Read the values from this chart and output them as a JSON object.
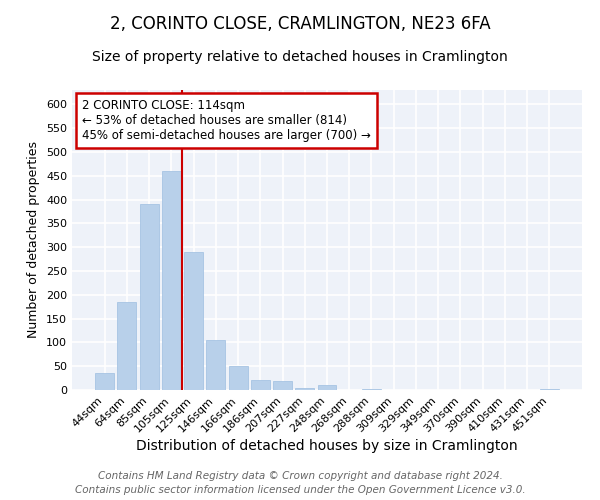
{
  "title": "2, CORINTO CLOSE, CRAMLINGTON, NE23 6FA",
  "subtitle": "Size of property relative to detached houses in Cramlington",
  "xlabel": "Distribution of detached houses by size in Cramlington",
  "ylabel": "Number of detached properties",
  "categories": [
    "44sqm",
    "64sqm",
    "85sqm",
    "105sqm",
    "125sqm",
    "146sqm",
    "166sqm",
    "186sqm",
    "207sqm",
    "227sqm",
    "248sqm",
    "268sqm",
    "288sqm",
    "309sqm",
    "329sqm",
    "349sqm",
    "370sqm",
    "390sqm",
    "410sqm",
    "431sqm",
    "451sqm"
  ],
  "values": [
    35,
    185,
    390,
    460,
    290,
    105,
    50,
    22,
    18,
    5,
    10,
    0,
    2,
    0,
    0,
    0,
    0,
    0,
    0,
    0,
    2
  ],
  "bar_color": "#b8d0ea",
  "bar_edge_color": "#9dbee0",
  "red_line_x": 3.5,
  "annotation_line1": "2 CORINTO CLOSE: 114sqm",
  "annotation_line2": "← 53% of detached houses are smaller (814)",
  "annotation_line3": "45% of semi-detached houses are larger (700) →",
  "annotation_box_facecolor": "#ffffff",
  "annotation_box_edgecolor": "#cc0000",
  "footer_line1": "Contains HM Land Registry data © Crown copyright and database right 2024.",
  "footer_line2": "Contains public sector information licensed under the Open Government Licence v3.0.",
  "ylim": [
    0,
    630
  ],
  "yticks": [
    0,
    50,
    100,
    150,
    200,
    250,
    300,
    350,
    400,
    450,
    500,
    550,
    600
  ],
  "background_color": "#eef2f9",
  "grid_color": "#ffffff",
  "title_fontsize": 12,
  "subtitle_fontsize": 10,
  "xlabel_fontsize": 10,
  "ylabel_fontsize": 9,
  "tick_fontsize": 8,
  "footer_fontsize": 7.5
}
